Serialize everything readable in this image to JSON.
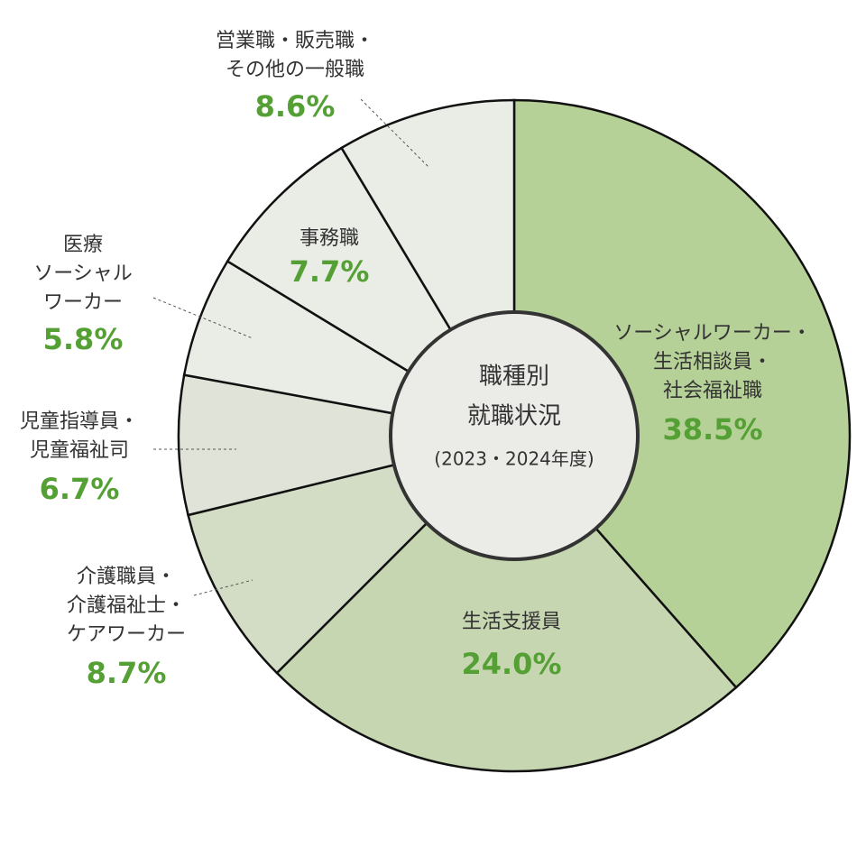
{
  "chart_data": {
    "type": "donut",
    "center_label": [
      "職種別",
      "就職状況",
      "(2023・2024年度)"
    ],
    "categories": [
      [
        "ソーシャルワーカー・",
        "生活相談員・",
        "社会福祉職"
      ],
      [
        "生活支援員"
      ],
      [
        "介護職員・",
        "介護福祉士・",
        "ケアワーカー"
      ],
      [
        "児童指導員・",
        "児童福祉司"
      ],
      [
        "医療",
        "ソーシャル",
        "ワーカー"
      ],
      [
        "事務職"
      ],
      [
        "営業職・販売職・",
        "その他の一般職"
      ]
    ],
    "values": [
      38.5,
      24.0,
      8.7,
      6.7,
      5.8,
      7.7,
      8.6
    ],
    "value_labels": [
      "38.5%",
      "24.0%",
      "8.7%",
      "6.7%",
      "5.8%",
      "7.7%",
      "8.6%"
    ],
    "colors": [
      "#b5d197",
      "#c6d6b0",
      "#d3ddc5",
      "#e0e4d8",
      "#eaece6",
      "#eaece6",
      "#eaece6"
    ]
  }
}
